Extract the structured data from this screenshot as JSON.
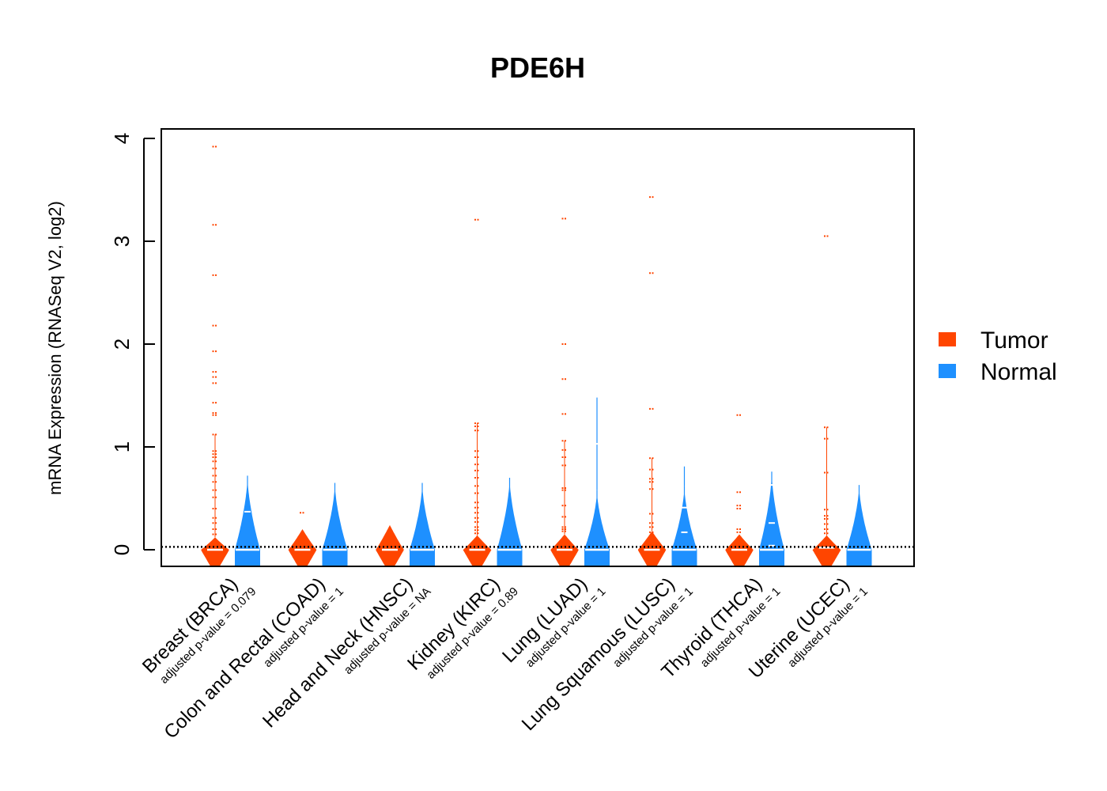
{
  "chart_data": {
    "type": "violin",
    "title": "PDE6H",
    "ylabel": "mRNA Expression (RNASeq V2, log2)",
    "xlabel": "",
    "ylim": [
      -0.16,
      4.08
    ],
    "yticks": [
      "0",
      "1",
      "2",
      "3",
      "4"
    ],
    "reference_line_y": 0.02,
    "legend": {
      "position": "right",
      "entries": [
        {
          "name": "Tumor",
          "color": "#FF4500"
        },
        {
          "name": "Normal",
          "color": "#1E90FF"
        }
      ]
    },
    "categories": [
      {
        "name": "Breast (BRCA)",
        "p_label": "adjusted p-value = 0.079",
        "tumor": {
          "max": 0.12,
          "median": 0.0,
          "outliers": [
            3.92,
            3.16,
            2.67,
            2.18,
            1.93,
            1.73,
            1.68,
            1.62,
            1.43,
            1.33,
            1.31,
            1.12,
            0.96,
            0.93,
            0.9,
            0.86,
            0.79,
            0.72,
            0.66,
            0.58,
            0.51,
            0.4,
            0.31,
            0.26,
            0.2,
            0.15
          ]
        },
        "normal": {
          "max": 0.72,
          "median": 0.0,
          "marks": [
            0.37
          ]
        }
      },
      {
        "name": "Colon and Rectal (COAD)",
        "p_label": "adjusted p-value = 1",
        "tumor": {
          "max": 0.2,
          "median": 0.0,
          "outliers": [
            0.36
          ]
        },
        "normal": {
          "max": 0.65,
          "median": 0.0,
          "marks": []
        }
      },
      {
        "name": "Head and Neck (HNSC)",
        "p_label": "adjusted p-value = NA",
        "tumor": {
          "max": 0.24,
          "median": 0.0,
          "outliers": []
        },
        "normal": {
          "max": 0.65,
          "median": 0.0,
          "marks": []
        }
      },
      {
        "name": "Kidney (KIRC)",
        "p_label": "adjusted p-value = 0.89",
        "tumor": {
          "max": 0.14,
          "median": 0.0,
          "outliers": [
            3.21,
            1.23,
            1.2,
            1.16,
            0.96,
            0.9,
            0.83,
            0.77,
            0.7,
            0.62,
            0.55,
            0.46,
            0.41,
            0.36,
            0.31,
            0.27,
            0.22,
            0.19,
            0.16
          ]
        },
        "normal": {
          "max": 0.7,
          "median": 0.0,
          "marks": []
        }
      },
      {
        "name": "Lung (LUAD)",
        "p_label": "adjusted p-value = 1",
        "tumor": {
          "max": 0.15,
          "median": 0.0,
          "outliers": [
            3.22,
            2.0,
            1.66,
            1.32,
            1.06,
            0.97,
            0.9,
            0.82,
            0.6,
            0.58,
            0.43,
            0.32,
            0.22,
            0.2,
            0.18
          ]
        },
        "normal": {
          "max": 0.58,
          "median": 0.0,
          "whisker_max": 1.48,
          "marks": [
            1.03
          ]
        }
      },
      {
        "name": "Lung Squamous (LUSC)",
        "p_label": "adjusted p-value = 1",
        "tumor": {
          "max": 0.18,
          "median": 0.0,
          "outliers": [
            3.43,
            2.69,
            1.37,
            0.89,
            0.78,
            0.69,
            0.66,
            0.59,
            0.35,
            0.26,
            0.22,
            0.17
          ]
        },
        "normal": {
          "max": 0.62,
          "median": 0.0,
          "whisker_max": 0.81,
          "marks": [
            0.41,
            0.17
          ]
        }
      },
      {
        "name": "Thyroid (THCA)",
        "p_label": "adjusted p-value = 1",
        "tumor": {
          "max": 0.15,
          "median": 0.0,
          "outliers": [
            1.31,
            0.56,
            0.43,
            0.4,
            0.2,
            0.17
          ]
        },
        "normal": {
          "max": 0.76,
          "median": 0.0,
          "marks": [
            0.63,
            0.26,
            0.04
          ]
        }
      },
      {
        "name": "Uterine (UCEC)",
        "p_label": "adjusted p-value = 1",
        "tumor": {
          "max": 0.14,
          "median": 0.02,
          "outliers": [
            3.05,
            1.19,
            1.08,
            0.75,
            0.39,
            0.33,
            0.3,
            0.25,
            0.2,
            0.16
          ]
        },
        "normal": {
          "max": 0.63,
          "median": 0.0,
          "marks": []
        }
      }
    ]
  }
}
